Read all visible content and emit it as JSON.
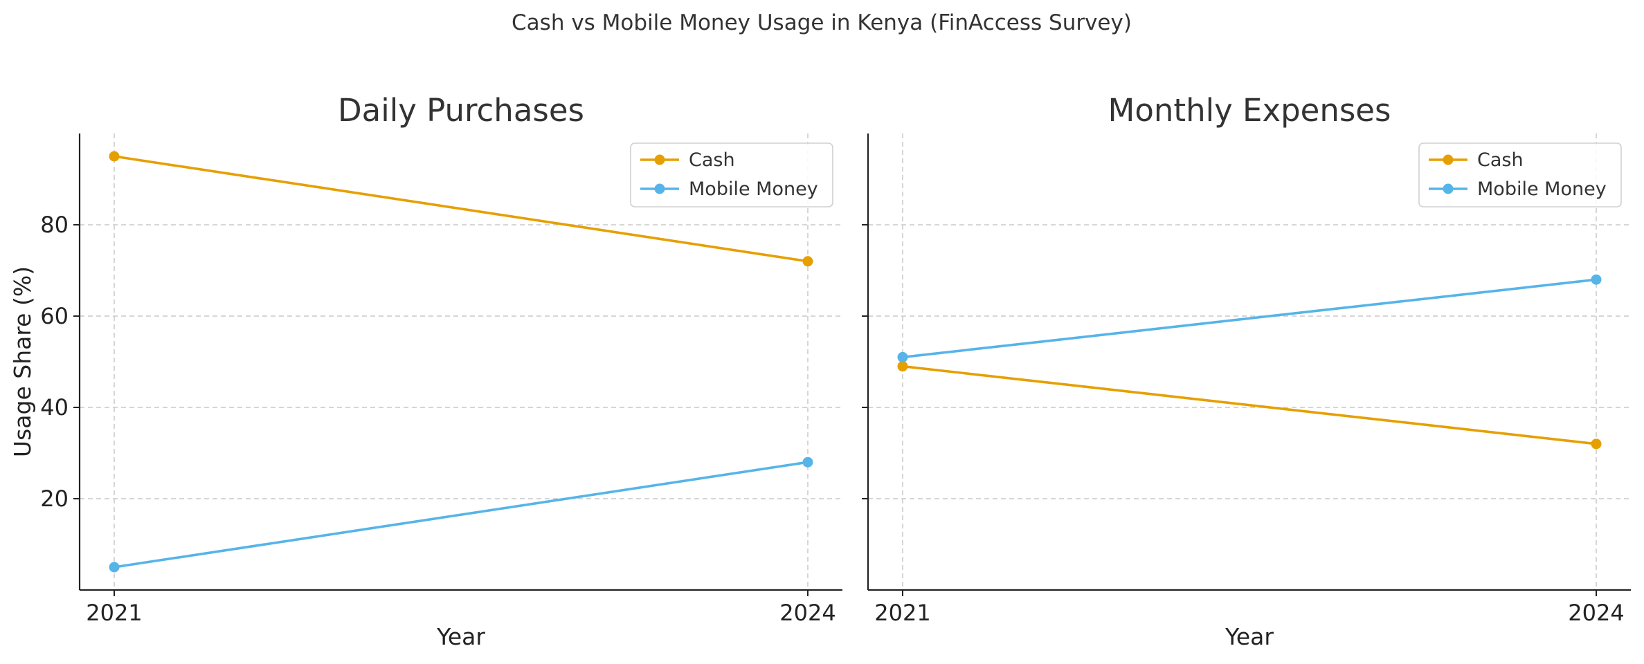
{
  "title": "Cash vs Mobile Money Usage in Kenya (FinAccess Survey)",
  "colors": {
    "Cash": "#E69F00",
    "Mobile Money": "#56B4E9"
  },
  "chart_data": [
    {
      "type": "line",
      "title": "Daily Purchases",
      "xlabel": "Year",
      "ylabel": "Usage Share (%)",
      "x": [
        "2021",
        "2024"
      ],
      "ylim": [
        0,
        100
      ],
      "yticks": [
        20,
        40,
        60,
        80
      ],
      "grid": true,
      "legend": "top-right",
      "series": [
        {
          "name": "Cash",
          "values": [
            95,
            72
          ]
        },
        {
          "name": "Mobile Money",
          "values": [
            5,
            28
          ]
        }
      ]
    },
    {
      "type": "line",
      "title": "Monthly Expenses",
      "xlabel": "Year",
      "ylabel": "",
      "x": [
        "2021",
        "2024"
      ],
      "ylim": [
        0,
        100
      ],
      "yticks": [
        20,
        40,
        60,
        80
      ],
      "grid": true,
      "legend": "top-right",
      "series": [
        {
          "name": "Cash",
          "values": [
            49,
            32
          ]
        },
        {
          "name": "Mobile Money",
          "values": [
            51,
            68
          ]
        }
      ]
    }
  ]
}
